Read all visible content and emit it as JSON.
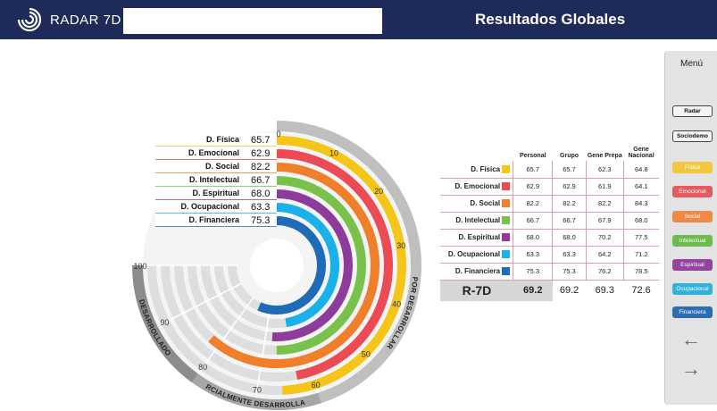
{
  "header": {
    "app_name": "RADAR 7D",
    "search_value": "",
    "page_title": "Resultados Globales",
    "bg_color": "#1e2a57"
  },
  "radar": {
    "rows": [
      {
        "label": "D. Física",
        "value": "65.7",
        "color": "#f5c518"
      },
      {
        "label": "D. Emocional",
        "value": "62.9",
        "color": "#ea4b55"
      },
      {
        "label": "D. Social",
        "value": "82.2",
        "color": "#f07f2c"
      },
      {
        "label": "D. Intelectual",
        "value": "66.7",
        "color": "#78c14a"
      },
      {
        "label": "D. Espiritual",
        "value": "68.0",
        "color": "#8e3c9b"
      },
      {
        "label": "D. Ocupacional",
        "value": "63.3",
        "color": "#1ab0e8"
      },
      {
        "label": "D. Financiera",
        "value": "75.3",
        "color": "#1f6bb5"
      }
    ],
    "ticks": [
      "0",
      "10",
      "20",
      "30",
      "40",
      "50",
      "60",
      "70",
      "80",
      "90",
      "100"
    ],
    "bands": {
      "por_desarrollar": "POR DESARROLLAR",
      "parcialmente": "PARCIALMENTE DESARROLLADO",
      "desarrollado": "DESARROLLADO"
    }
  },
  "results": {
    "headers": [
      "Personal",
      "Grupo",
      "Gene Prepa",
      "Gene Nacional"
    ],
    "rows": [
      {
        "label": "D. Física",
        "color": "#f5c518",
        "personal": "65.7",
        "grupo": "65.7",
        "prepa": "62.3",
        "nacional": "64.8"
      },
      {
        "label": "D. Emocional",
        "color": "#ea4b55",
        "personal": "62.9",
        "grupo": "62.9",
        "prepa": "61.9",
        "nacional": "64.1"
      },
      {
        "label": "D. Social",
        "color": "#f07f2c",
        "personal": "82.2",
        "grupo": "82.2",
        "prepa": "82.2",
        "nacional": "84.3"
      },
      {
        "label": "D. Intelectual",
        "color": "#78c14a",
        "personal": "66.7",
        "grupo": "66.7",
        "prepa": "67.9",
        "nacional": "68.0"
      },
      {
        "label": "D. Espiritual",
        "color": "#8e3c9b",
        "personal": "68.0",
        "grupo": "68.0",
        "prepa": "70.2",
        "nacional": "77.5"
      },
      {
        "label": "D. Ocupacional",
        "color": "#1ab0e8",
        "personal": "63.3",
        "grupo": "63.3",
        "prepa": "64.2",
        "nacional": "71.2"
      },
      {
        "label": "D. Financiera",
        "color": "#1f6bb5",
        "personal": "75.3",
        "grupo": "75.3",
        "prepa": "76.2",
        "nacional": "78.5"
      }
    ],
    "total": {
      "label": "R-7D",
      "personal": "69.2",
      "grupo": "69.2",
      "prepa": "69.3",
      "nacional": "72.6"
    }
  },
  "menu": {
    "title": "Menú",
    "buttons": [
      {
        "label": "Radar",
        "style": "white"
      },
      {
        "label": "Sociodemo",
        "style": "white"
      },
      {
        "label": "Física",
        "style": "color",
        "color": "#f2c640"
      },
      {
        "label": "Emocional",
        "style": "color",
        "color": "#e35b61"
      },
      {
        "label": "Social",
        "style": "color",
        "color": "#ee8a45"
      },
      {
        "label": "Intelectual",
        "style": "color",
        "color": "#6dbb4f"
      },
      {
        "label": "Espiritual",
        "style": "color",
        "color": "#94449f"
      },
      {
        "label": "Ocupacional",
        "style": "color",
        "color": "#2fb2e2"
      },
      {
        "label": "Financiera",
        "style": "color",
        "color": "#2d6cb0"
      }
    ],
    "back_icon": "arrow-left-icon",
    "forward_icon": "arrow-right-icon"
  }
}
